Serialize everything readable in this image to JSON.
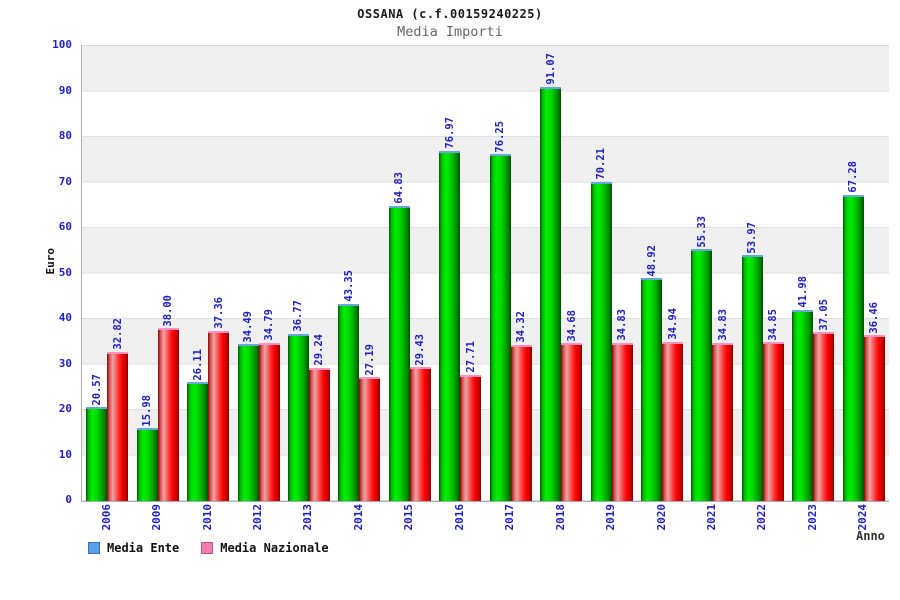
{
  "header": {
    "title": "OSSANA (c.f.00159240225)",
    "subtitle": "Media Importi"
  },
  "axes": {
    "y_label": "Euro",
    "x_label": "Anno",
    "y_ticks": [
      0,
      10,
      20,
      30,
      40,
      50,
      60,
      70,
      80,
      90,
      100
    ]
  },
  "legend": {
    "items": [
      {
        "label": "Media Ente",
        "swatch_color": "#5aa2e8",
        "swatch_border": "#3d6fbf"
      },
      {
        "label": "Media Nazionale",
        "swatch_color": "#ef7fae",
        "swatch_border": "#c94f86"
      }
    ]
  },
  "colors": {
    "bar_green": "#00cc00",
    "bar_green_cap": "#66a8dd",
    "bar_red": "#ee2222",
    "bar_red_cap": "#ff8fc0",
    "label_blue": "#2121c4",
    "band_gray": "#f0f0f0"
  },
  "chart_data": {
    "type": "bar",
    "title": "OSSANA (c.f.00159240225)",
    "subtitle": "Media Importi",
    "xlabel": "Anno",
    "ylabel": "Euro",
    "ylim": [
      0,
      100
    ],
    "grid": true,
    "legend_position": "bottom",
    "categories": [
      "2006",
      "2009",
      "2010",
      "2012",
      "2013",
      "2014",
      "2015",
      "2016",
      "2017",
      "2018",
      "2019",
      "2020",
      "2021",
      "2022",
      "2023",
      "2024"
    ],
    "series": [
      {
        "name": "Media Ente",
        "color": "green",
        "values": [
          20.57,
          15.98,
          26.11,
          34.49,
          36.77,
          43.35,
          64.83,
          76.97,
          76.25,
          91.07,
          70.21,
          48.92,
          55.33,
          53.97,
          41.98,
          67.28
        ]
      },
      {
        "name": "Media Nazionale",
        "color": "red",
        "values": [
          32.82,
          38.0,
          37.36,
          34.79,
          29.24,
          27.19,
          29.43,
          27.71,
          34.32,
          34.68,
          34.83,
          34.94,
          34.83,
          34.85,
          37.05,
          36.46
        ]
      }
    ]
  }
}
